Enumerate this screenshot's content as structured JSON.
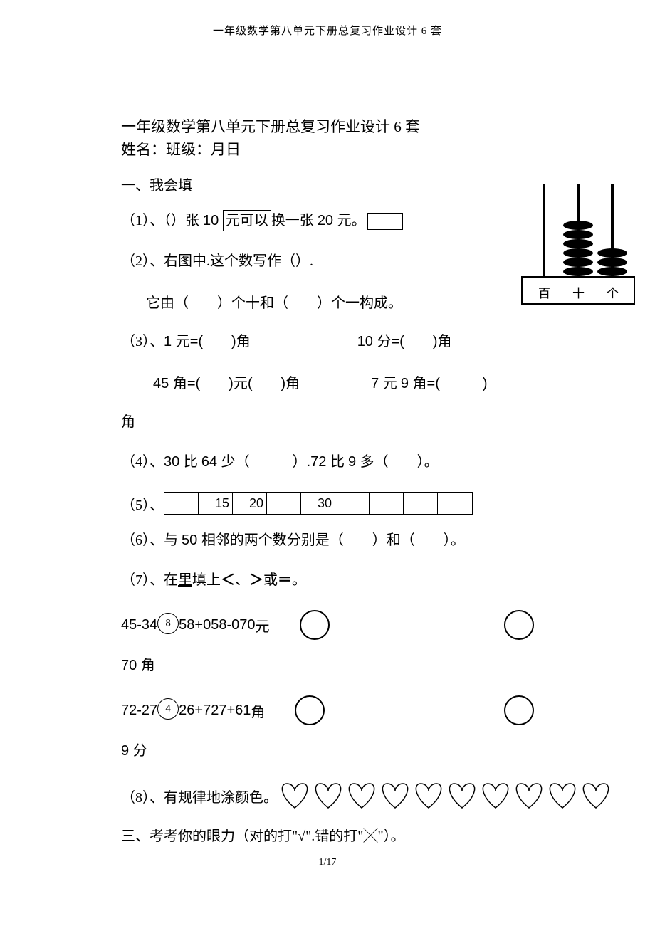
{
  "header": "一年级数学第八单元下册总复习作业设计 6 套",
  "title": "一年级数学第八单元下册总复习作业设计 6 套",
  "subtitle": "姓名：班级：月日",
  "section1": "一、我会填",
  "q1_a": "（1）、（）张 ",
  "q1_b": "10 ",
  "q1_c": "元可以",
  "q1_d": "换一张 ",
  "q1_e": "20 ",
  "q1_f": "元。",
  "q2a": "（2）、右图中.这个数写作（）.",
  "q2b": "它由（　　）个十和（　　）个一构成。",
  "q3_a": "（3）、",
  "q3_b": "1 ",
  "q3_c": "元",
  "q3_d": "=(　　)",
  "q3_e": "角",
  "q3_f": "10 ",
  "q3_g": "分",
  "q3_h": "=(　　)",
  "q3_i": "角",
  "q3b_a": "45 ",
  "q3b_b": "角",
  "q3b_c": "=(　　)",
  "q3b_d": "元",
  "q3b_e": "(　　)",
  "q3b_f": "角",
  "q3b_g": "7 ",
  "q3b_h": "元 ",
  "q3b_i": "9 ",
  "q3b_j": "角",
  "q3b_k": "=(　　　)",
  "q3c": "角",
  "q4_a": "（4）、",
  "q4_b": "30 ",
  "q4_c": "比 ",
  "q4_d": "64 ",
  "q4_e": "少（　　　）",
  "q4_f": ".72 ",
  "q4_g": "比 ",
  "q4_h": "9 ",
  "q4_i": "多（　　）。",
  "q5_label": "（5）、",
  "q5_cells": [
    "",
    "15",
    "20",
    "",
    "30",
    "",
    "",
    "",
    ""
  ],
  "q6_a": "（6）、与 ",
  "q6_b": "50 ",
  "q6_c": "相邻的两个数分别是（　　）和（　　）。",
  "q7_a": "（7）、在",
  "q7_b": "里",
  "q7_c": "填上",
  "q7_d": "＜",
  "q7_e": "、",
  "q7_f": "＞",
  "q7_g": "或",
  "q7_h": "＝",
  "q7_i": "。",
  "cmp1_a": "45-34",
  "cmp1_b": "8",
  "cmp1_c": "58+0",
  "cmp1_d": "58-0",
  "cmp1_e": "70 ",
  "cmp1_f": "元",
  "cmp2": "70 角",
  "cmp3_a": "72-27",
  "cmp3_b": "4",
  "cmp3_c": "26",
  "cmp3_d": "+7",
  "cmp3_e": "27+6",
  "cmp3_f": "1 ",
  "cmp3_g": "角",
  "cmp4": "9 分",
  "q8": "（8）、有规律地涂颜色。",
  "section3": "三、考考你的眼力（对的打\"√\".错的打\"╳\"）。",
  "abacus": {
    "labels": [
      "百",
      "十",
      "个"
    ],
    "beads_rod2": 6,
    "beads_rod3": 3
  },
  "hearts_count": 10,
  "footer": "1/17",
  "colors": {
    "text": "#000000",
    "background": "#ffffff"
  }
}
